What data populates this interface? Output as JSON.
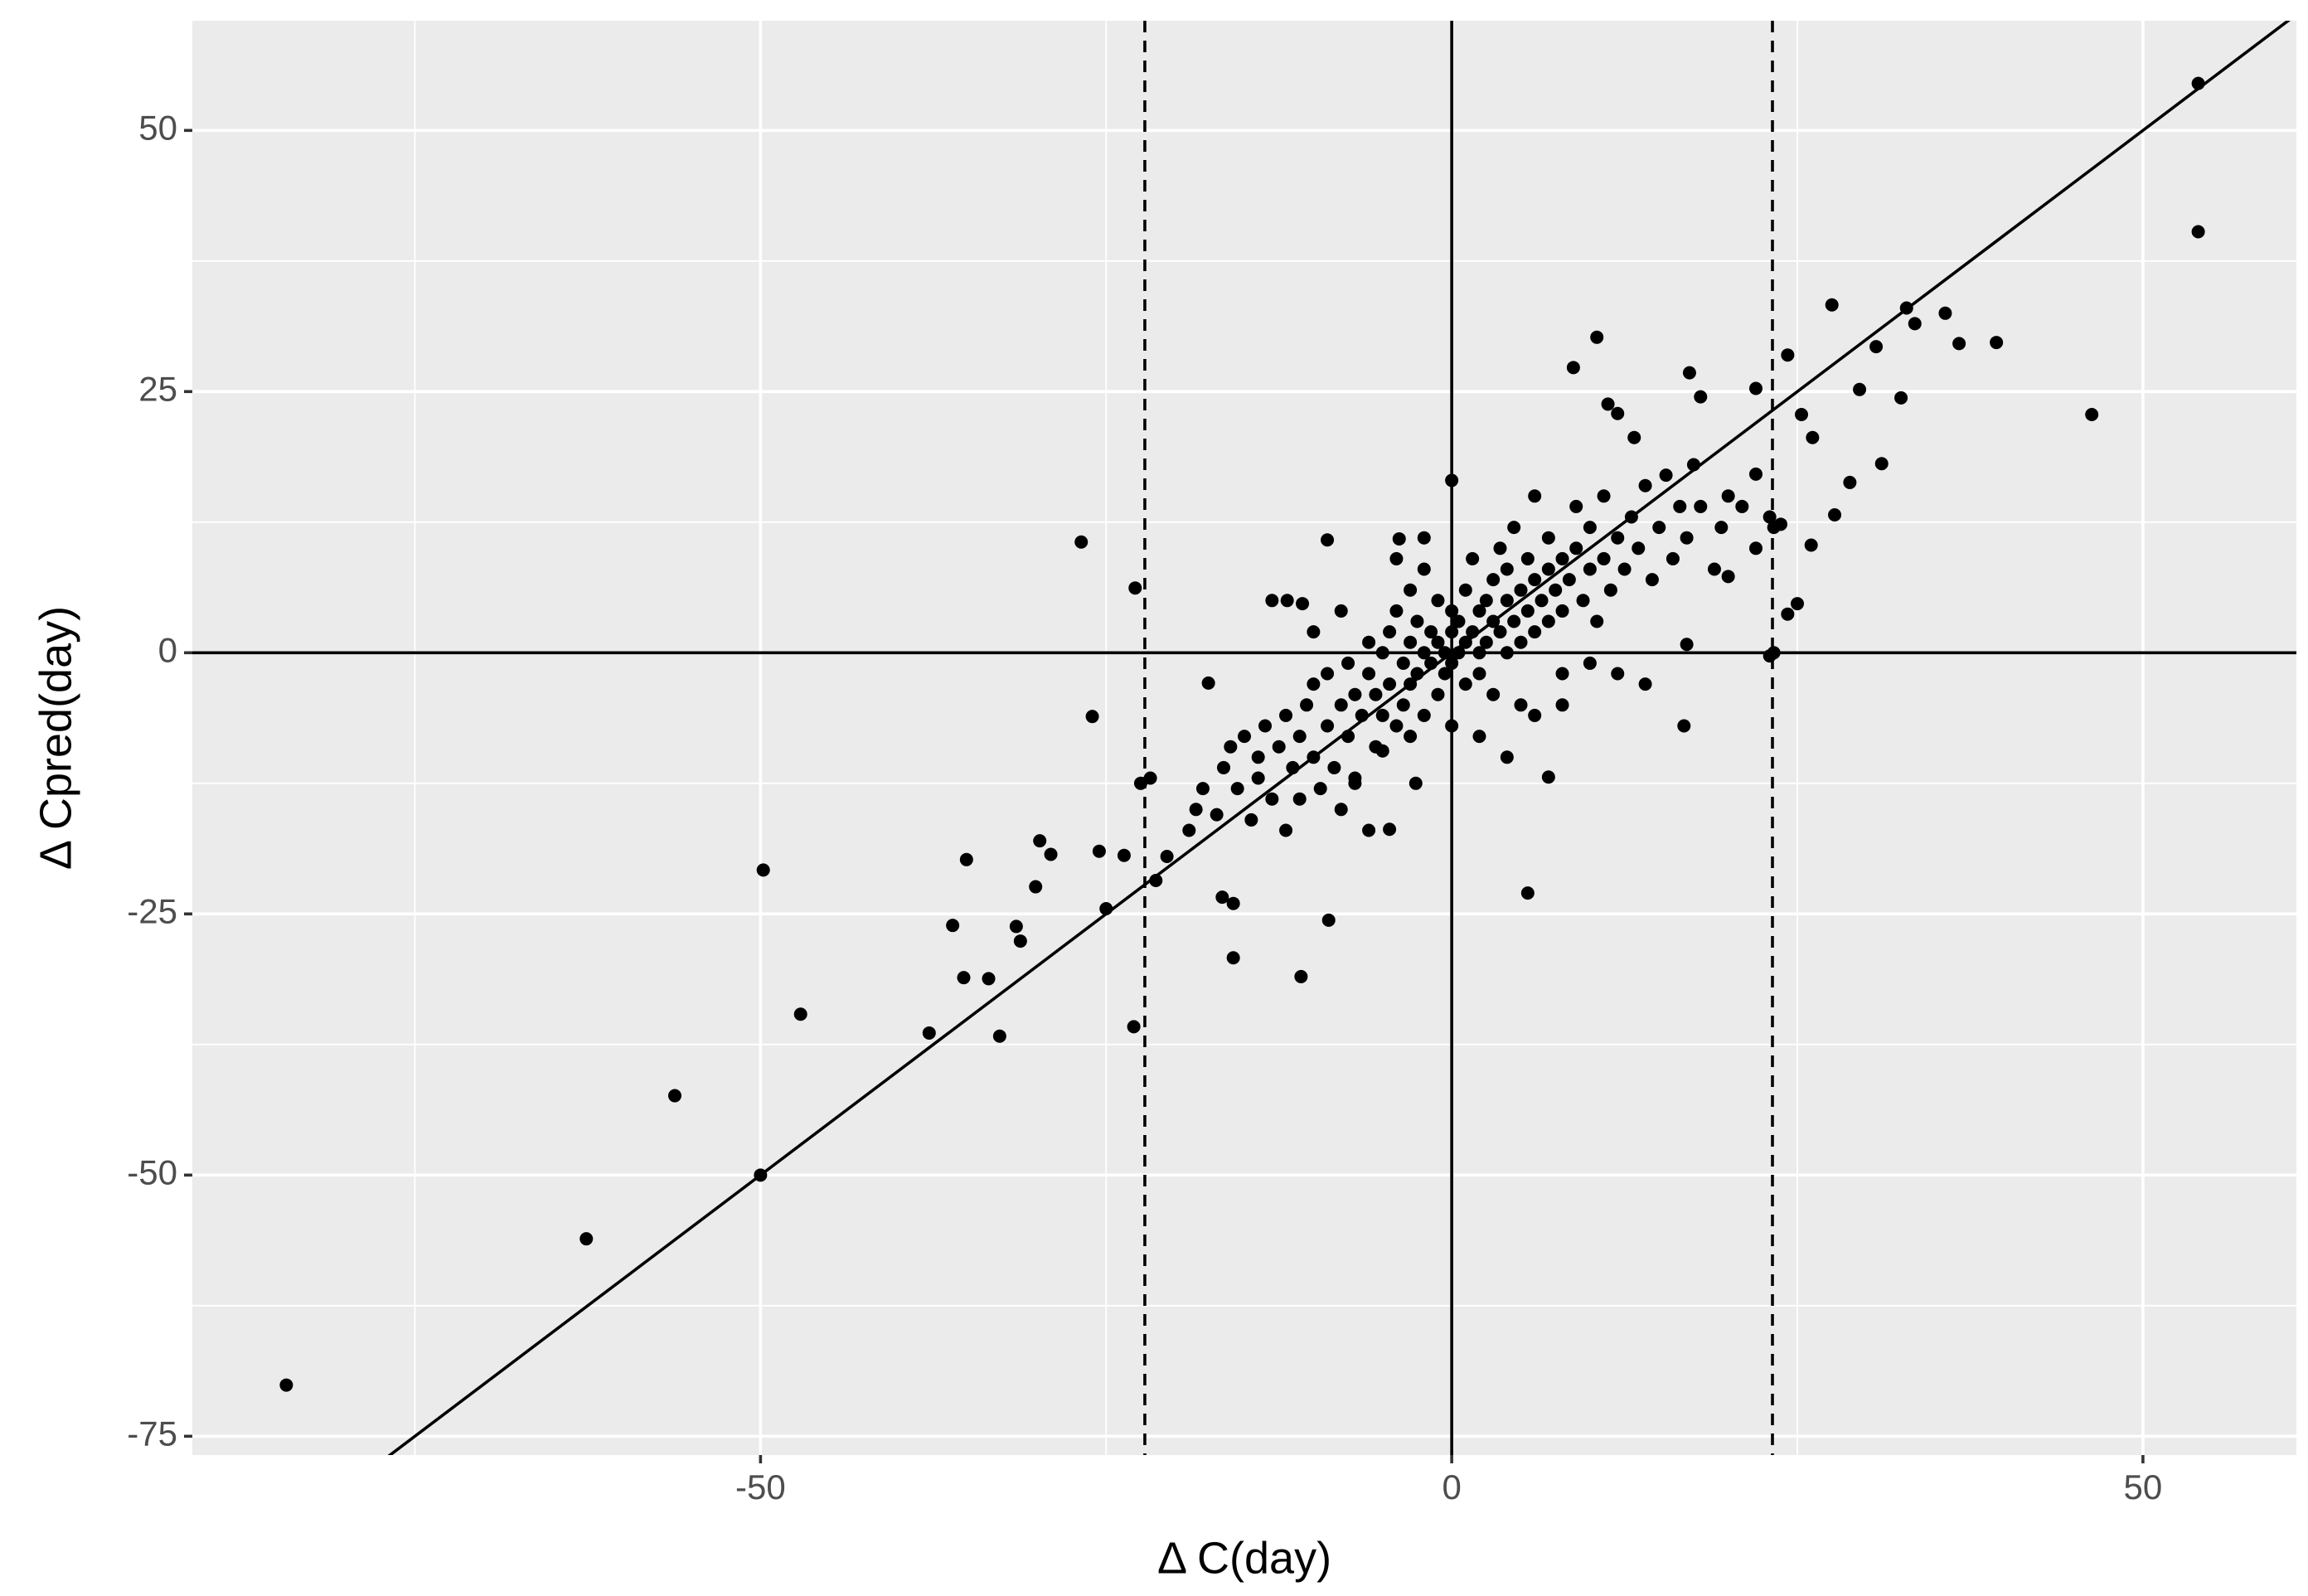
{
  "chart_data": {
    "type": "scatter",
    "x_label": "Δ  C(day)",
    "y_label": "Δ  Cpred(day)",
    "xlim": [
      -91.1,
      61.1
    ],
    "ylim": [
      -76.8,
      60.5
    ],
    "xticks": [
      -50,
      0,
      50
    ],
    "yticks": [
      -75,
      -50,
      -25,
      0,
      25,
      50
    ],
    "grid": true,
    "color": "#000000",
    "hlines": [
      0
    ],
    "vlines": [
      0
    ],
    "dashed_vlines": [
      -22.2,
      23.2
    ],
    "abline": {
      "slope": 1,
      "intercept": 0
    },
    "x": [
      -84.3,
      -62.6,
      -56.2,
      -49.8,
      -50,
      -47.1,
      -37.8,
      -36.1,
      -35.3,
      -35.1,
      -33.5,
      -32.7,
      -31.5,
      -31.2,
      -30.1,
      -29.8,
      -29,
      -26.8,
      -26,
      -25.5,
      -25,
      -23.7,
      -22.9,
      -23,
      -22.5,
      -21.8,
      -20.6,
      -21.4,
      -16.6,
      -15.8,
      -15.8,
      -17.6,
      -10.9,
      -8.9,
      -11.9,
      -10.8,
      -9,
      -3.8,
      0,
      5.5,
      7,
      8.8,
      10.5,
      11.3,
      12,
      13.2,
      17.2,
      18,
      22,
      23.3,
      23,
      23.3,
      24.3,
      25.3,
      26.1,
      27.5,
      28.8,
      29.5,
      30.7,
      31.1,
      32.5,
      32.9,
      33.5,
      35.7,
      36.7,
      39.4,
      46.3,
      54,
      54,
      16.8,
      14,
      17,
      20,
      25,
      24.3,
      26,
      27.7,
      23.8,
      22,
      -5,
      -4.5,
      -2.6,
      -19,
      -18.5,
      -18,
      -17,
      -16.5,
      -16,
      -15.5,
      -15,
      -14.5,
      -14,
      -14,
      -13.5,
      -13,
      -12.5,
      -12,
      -12,
      -11.5,
      -11,
      -11,
      -10.5,
      -10,
      -10,
      -9.5,
      -9,
      -9,
      -8.5,
      -8,
      -8,
      -7.5,
      -7.5,
      -7,
      -7,
      -6.5,
      -6,
      -6,
      -5.5,
      -5.5,
      -5,
      -5,
      -4.5,
      -4.5,
      -4,
      -4,
      -3.5,
      -3.5,
      -3,
      -3,
      -3,
      -2.5,
      -2.5,
      -2,
      -2,
      -2,
      -1.5,
      -1.5,
      -1,
      -1,
      -1,
      -0.5,
      -0.5,
      0,
      0,
      0,
      0,
      0.5,
      0.5,
      1,
      1,
      1,
      1.5,
      1.5,
      2,
      2,
      2,
      2.5,
      2.5,
      3,
      3,
      3,
      3.5,
      3.5,
      4,
      4,
      4,
      4.5,
      4.5,
      5,
      5,
      5,
      5.5,
      5.5,
      6,
      6,
      6,
      6.5,
      7,
      7,
      7,
      7.5,
      8,
      8,
      8,
      8.5,
      9,
      9,
      9.5,
      10,
      10,
      10.5,
      11,
      11,
      11.5,
      12,
      12,
      12.5,
      13,
      13.5,
      14,
      14.5,
      15,
      15.5,
      16,
      16.5,
      17,
      17.5,
      18,
      19,
      19.5,
      20,
      21,
      22,
      23,
      -4,
      -2,
      2,
      4,
      6,
      8,
      10,
      -8,
      -10,
      -13,
      -6,
      -3,
      -7
    ],
    "values": [
      -70.1,
      -56.1,
      -42.4,
      -20.8,
      -50,
      -34.6,
      -36.4,
      -26.1,
      -31.1,
      -19.8,
      -31.2,
      -36.7,
      -26.2,
      -27.6,
      -22.4,
      -18,
      -19.3,
      10.6,
      -6.1,
      -19,
      -24.5,
      -19.4,
      6.2,
      -35.8,
      -12.5,
      -12,
      -19.5,
      -21.8,
      -23.4,
      -24,
      -29.2,
      -2.9,
      -31,
      -25.6,
      5,
      4.7,
      10.8,
      10.9,
      16.5,
      -23,
      -11.9,
      27.3,
      30.2,
      23.8,
      22.9,
      20.6,
      26.8,
      24.5,
      25.3,
      0,
      -0.3,
      12,
      28.5,
      22.8,
      20.6,
      33.3,
      16.3,
      25.2,
      29.3,
      18.1,
      24.4,
      33,
      31.5,
      32.5,
      29.6,
      29.7,
      22.8,
      54.5,
      40.3,
      -7,
      -3,
      0.8,
      7.3,
      4.7,
      3.7,
      10.3,
      13.2,
      12.3,
      17.1,
      -9.4,
      -16.9,
      -12.5,
      -17,
      -15,
      -13,
      -15.5,
      -11,
      -9,
      -13,
      -8,
      -16,
      -12,
      -10,
      -7,
      -14,
      -9,
      -6,
      -17,
      -11,
      -8,
      -14,
      -5,
      -10,
      -3,
      -13,
      -7,
      -2,
      -11,
      -5,
      -15,
      -1,
      -8,
      -4,
      -12,
      -6,
      -2,
      1,
      -9,
      -4,
      0,
      -6,
      2,
      -3,
      -7,
      4,
      -1,
      -5,
      1,
      -3,
      6,
      -2,
      3,
      0,
      -6,
      8,
      -1,
      2,
      -4,
      1,
      5,
      0,
      -2,
      2,
      -1,
      4,
      -7,
      3,
      0,
      1,
      -3,
      6,
      2,
      9,
      4,
      0,
      -2,
      5,
      1,
      3,
      7,
      -4,
      2,
      10,
      5,
      0,
      8,
      3,
      12,
      6,
      1,
      -5,
      4,
      9,
      7,
      2,
      15,
      5,
      8,
      3,
      11,
      6,
      9,
      4,
      -2,
      7,
      10,
      14,
      5,
      8,
      12,
      3,
      9,
      15,
      6,
      11,
      -2,
      8,
      13,
      10,
      16,
      7,
      12,
      17,
      9,
      14,
      11,
      18,
      14,
      8,
      12,
      15,
      14,
      10,
      13,
      9,
      11,
      -8,
      -10,
      -6,
      -5,
      -1,
      4,
      2,
      5,
      -17,
      -8,
      -12.5
    ]
  }
}
